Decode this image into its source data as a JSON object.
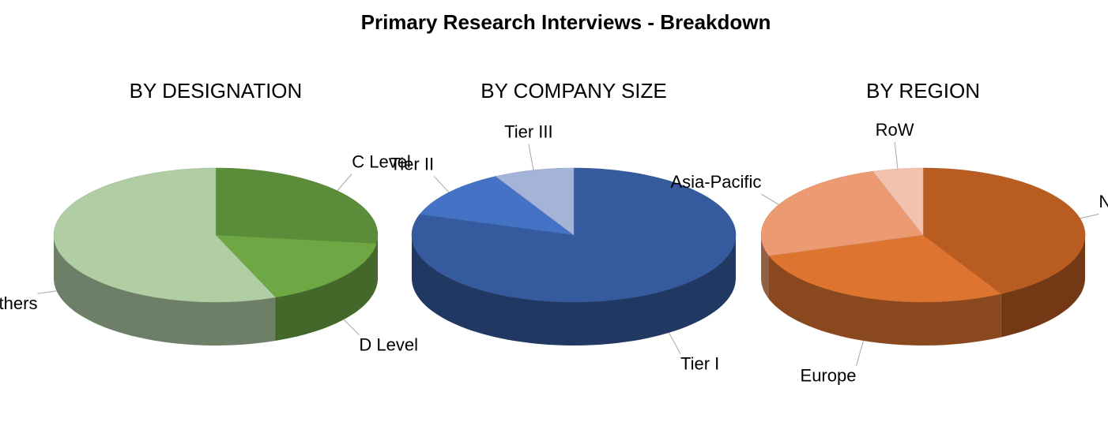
{
  "title": "Primary Research Interviews - Breakdown",
  "chart_data": [
    {
      "type": "pie",
      "title": "BY DESIGNATION",
      "categories": [
        "C Level",
        "D Level",
        "Others"
      ],
      "values": [
        27,
        17,
        56
      ],
      "colors": [
        "#5b8c3a",
        "#6ea844",
        "#b0cda4"
      ]
    },
    {
      "type": "pie",
      "title": "BY COMPANY SIZE",
      "categories": [
        "Tier I",
        "Tier II",
        "Tier III"
      ],
      "values": [
        80,
        12,
        8
      ],
      "colors": [
        "#355a9e",
        "#4472c4",
        "#a4b3d8"
      ]
    },
    {
      "type": "pie",
      "title": "BY REGION",
      "categories": [
        "North America",
        "Europe",
        "Asia-Pacific",
        "RoW"
      ],
      "values": [
        42,
        28,
        25,
        5
      ],
      "colors": [
        "#b95c22",
        "#dd7430",
        "#ec9a72",
        "#f2c2ae"
      ]
    }
  ]
}
